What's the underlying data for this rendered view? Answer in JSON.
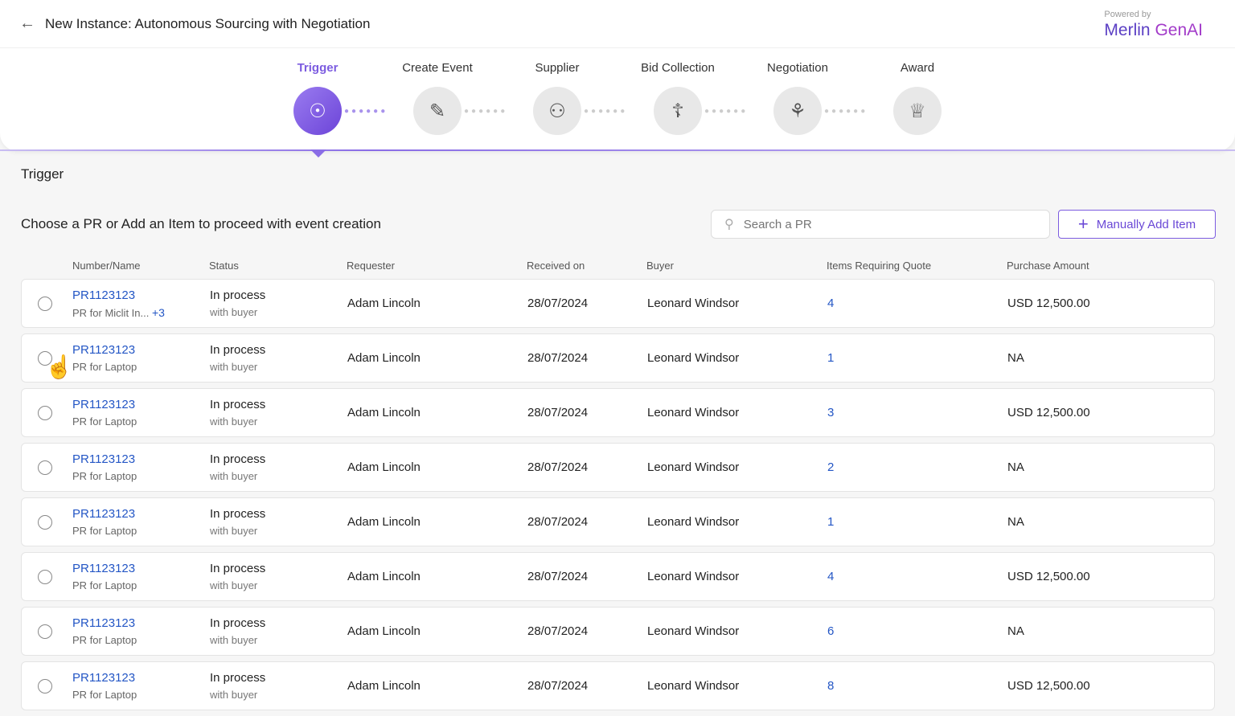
{
  "header": {
    "title": "New Instance: Autonomous Sourcing with Negotiation",
    "powered_by": "Powered by",
    "brand_1": "Merlin",
    "brand_2": "GenAI"
  },
  "steps": [
    {
      "label": "Trigger",
      "icon": "target-cursor-icon",
      "active": true
    },
    {
      "label": "Create Event",
      "icon": "calendar-edit-icon"
    },
    {
      "label": "Supplier",
      "icon": "users-device-icon"
    },
    {
      "label": "Bid Collection",
      "icon": "hands-money-icon"
    },
    {
      "label": "Negotiation",
      "icon": "meeting-icon"
    },
    {
      "label": "Award",
      "icon": "trophy-icon"
    }
  ],
  "section_title": "Trigger",
  "instruction": "Choose a PR or Add an Item to proceed with event creation",
  "search": {
    "placeholder": "Search a PR",
    "value": ""
  },
  "add_button": "Manually Add Item",
  "columns": [
    "Number/Name",
    "Status",
    "Requester",
    "Received on",
    "Buyer",
    "Items Requiring Quote",
    "Purchase Amount"
  ],
  "rows": [
    {
      "number": "PR1123123",
      "name": "PR for Miclit In...",
      "extra": "+3",
      "status": "In process",
      "substatus": "with buyer",
      "requester": "Adam Lincoln",
      "received": "28/07/2024",
      "buyer": "Leonard Windsor",
      "items": "4",
      "amount": "USD 12,500.00"
    },
    {
      "number": "PR1123123",
      "name": "PR for Laptop",
      "status": "In process",
      "substatus": "with buyer",
      "requester": "Adam Lincoln",
      "received": "28/07/2024",
      "buyer": "Leonard Windsor",
      "items": "1",
      "amount": "NA"
    },
    {
      "number": "PR1123123",
      "name": "PR for Laptop",
      "status": "In process",
      "substatus": "with buyer",
      "requester": "Adam Lincoln",
      "received": "28/07/2024",
      "buyer": "Leonard Windsor",
      "items": "3",
      "amount": "USD 12,500.00"
    },
    {
      "number": "PR1123123",
      "name": "PR for Laptop",
      "status": "In process",
      "substatus": "with buyer",
      "requester": "Adam Lincoln",
      "received": "28/07/2024",
      "buyer": "Leonard Windsor",
      "items": "2",
      "amount": "NA"
    },
    {
      "number": "PR1123123",
      "name": "PR for Laptop",
      "status": "In process",
      "substatus": "with buyer",
      "requester": "Adam Lincoln",
      "received": "28/07/2024",
      "buyer": "Leonard Windsor",
      "items": "1",
      "amount": "NA"
    },
    {
      "number": "PR1123123",
      "name": "PR for Laptop",
      "status": "In process",
      "substatus": "with buyer",
      "requester": "Adam Lincoln",
      "received": "28/07/2024",
      "buyer": "Leonard Windsor",
      "items": "4",
      "amount": "USD 12,500.00"
    },
    {
      "number": "PR1123123",
      "name": "PR for Laptop",
      "status": "In process",
      "substatus": "with buyer",
      "requester": "Adam Lincoln",
      "received": "28/07/2024",
      "buyer": "Leonard Windsor",
      "items": "6",
      "amount": "NA"
    },
    {
      "number": "PR1123123",
      "name": "PR for Laptop",
      "status": "In process",
      "substatus": "with buyer",
      "requester": "Adam Lincoln",
      "received": "28/07/2024",
      "buyer": "Leonard Windsor",
      "items": "8",
      "amount": "USD 12,500.00"
    }
  ],
  "colors": {
    "accent": "#7c5ce0",
    "link": "#2356c5"
  }
}
